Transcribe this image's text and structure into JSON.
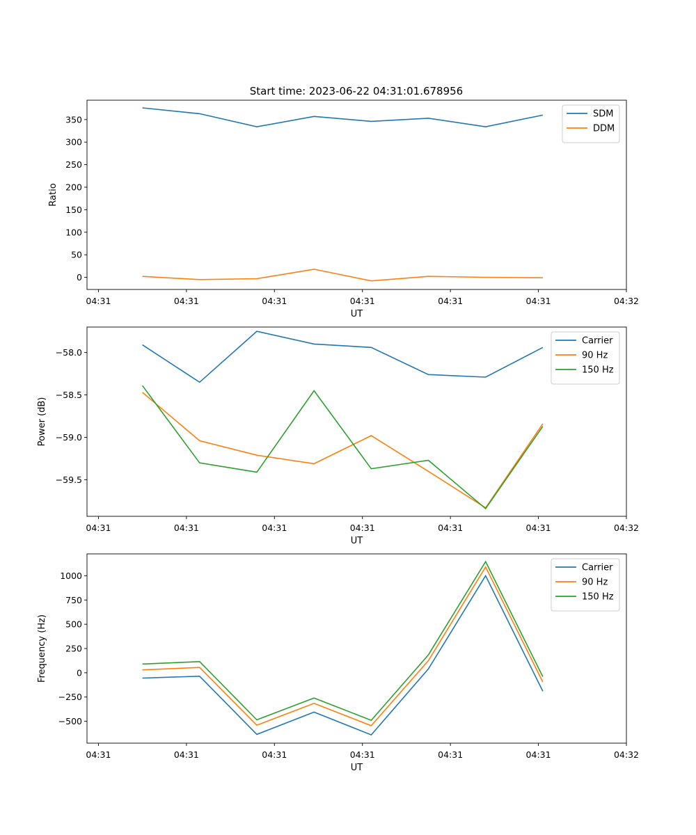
{
  "figure_title": "Start time: 2023-06-22 04:31:01.678956",
  "chart_data": [
    {
      "type": "line",
      "xlabel": "UT",
      "ylabel": "Ratio",
      "x_tick_labels": [
        "04:31",
        "04:31",
        "04:31",
        "04:31",
        "04:31",
        "04:31",
        "04:32"
      ],
      "x": [
        0.5,
        1.15,
        1.8,
        2.45,
        3.1,
        3.75,
        4.4,
        5.05
      ],
      "xlim": [
        -0.13,
        6.0
      ],
      "ylim": [
        -27,
        393
      ],
      "y_ticks": [
        0,
        50,
        100,
        150,
        200,
        250,
        300,
        350
      ],
      "legend_position": "top-right",
      "series": [
        {
          "name": "SDM",
          "color": "#1f77b4",
          "values": [
            376,
            363,
            334,
            357,
            346,
            353,
            334,
            360
          ]
        },
        {
          "name": "DDM",
          "color": "#ff7f0e",
          "values": [
            2,
            -5,
            -3,
            18,
            -8,
            2,
            0,
            -1
          ]
        }
      ]
    },
    {
      "type": "line",
      "xlabel": "UT",
      "ylabel": "Power (dB)",
      "x_tick_labels": [
        "04:31",
        "04:31",
        "04:31",
        "04:31",
        "04:31",
        "04:31",
        "04:32"
      ],
      "x": [
        0.5,
        1.15,
        1.8,
        2.45,
        3.1,
        3.75,
        4.4,
        5.05
      ],
      "xlim": [
        -0.13,
        6.0
      ],
      "ylim": [
        -59.93,
        -57.7
      ],
      "y_ticks": [
        -59.5,
        -59.0,
        -58.5,
        -58.0
      ],
      "y_tick_labels": [
        "−59.5",
        "−59.0",
        "−58.5",
        "−58.0"
      ],
      "legend_position": "top-right",
      "series": [
        {
          "name": "Carrier",
          "color": "#1f77b4",
          "values": [
            -57.91,
            -58.35,
            -57.75,
            -57.9,
            -57.94,
            -58.26,
            -58.29,
            -57.94
          ]
        },
        {
          "name": "90 Hz",
          "color": "#ff7f0e",
          "values": [
            -58.47,
            -59.04,
            -59.21,
            -59.31,
            -58.98,
            -59.4,
            -59.83,
            -58.84
          ]
        },
        {
          "name": "150 Hz",
          "color": "#2ca02c",
          "values": [
            -58.39,
            -59.3,
            -59.41,
            -58.45,
            -59.37,
            -59.27,
            -59.84,
            -58.87
          ]
        }
      ]
    },
    {
      "type": "line",
      "xlabel": "UT",
      "ylabel": "Frequency (Hz)",
      "x_tick_labels": [
        "04:31",
        "04:31",
        "04:31",
        "04:31",
        "04:31",
        "04:31",
        "04:32"
      ],
      "x": [
        0.5,
        1.15,
        1.8,
        2.45,
        3.1,
        3.75,
        4.4,
        5.05
      ],
      "xlim": [
        -0.13,
        6.0
      ],
      "ylim": [
        -725,
        1225
      ],
      "y_ticks": [
        -500,
        -250,
        0,
        250,
        500,
        750,
        1000
      ],
      "y_tick_labels": [
        "−500",
        "−250",
        "0",
        "250",
        "500",
        "750",
        "1000"
      ],
      "legend_position": "top-right",
      "series": [
        {
          "name": "Carrier",
          "color": "#1f77b4",
          "values": [
            -55,
            -35,
            -635,
            -405,
            -640,
            40,
            1000,
            -190
          ]
        },
        {
          "name": "90 Hz",
          "color": "#ff7f0e",
          "values": [
            30,
            55,
            -540,
            -315,
            -545,
            125,
            1090,
            -95
          ]
        },
        {
          "name": "150 Hz",
          "color": "#2ca02c",
          "values": [
            90,
            115,
            -485,
            -260,
            -490,
            185,
            1145,
            -40
          ]
        }
      ]
    }
  ]
}
